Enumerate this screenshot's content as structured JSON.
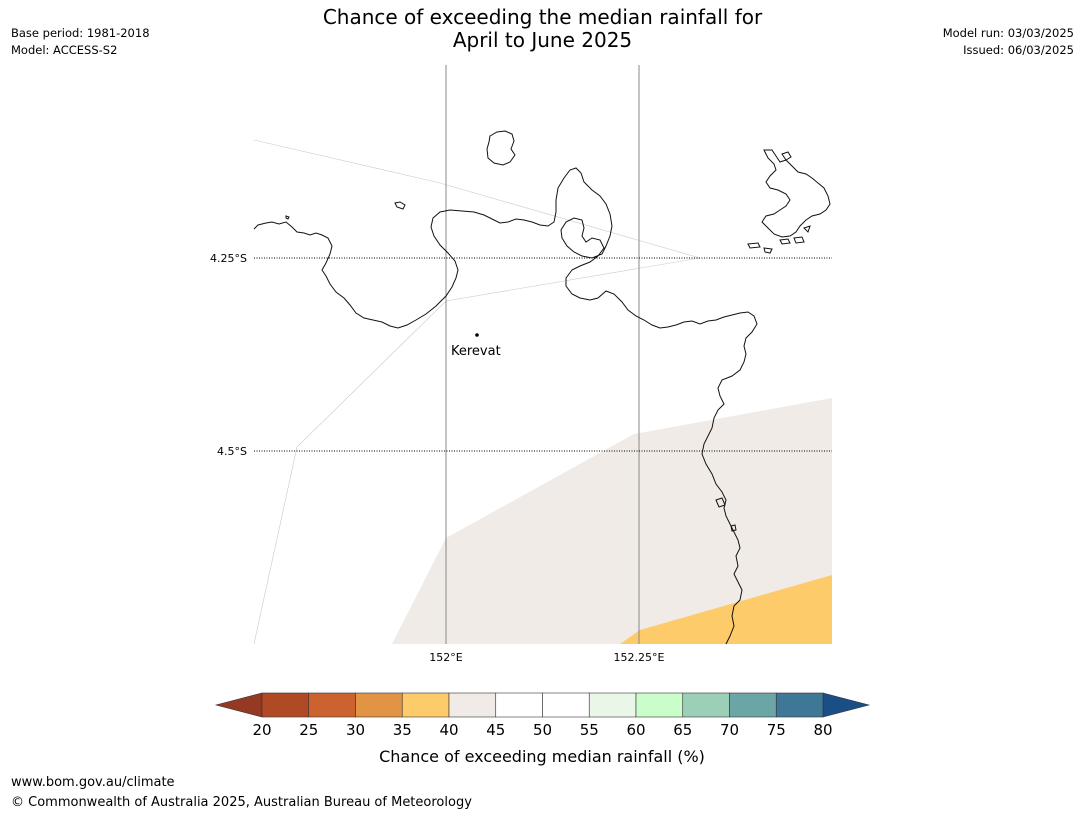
{
  "title": {
    "line1": "Chance of exceeding the median rainfall for",
    "line2": "April to June 2025"
  },
  "meta_left": {
    "base_period": "Base period: 1981-2018",
    "model": "Model: ACCESS-S2"
  },
  "meta_right": {
    "model_run": "Model run: 03/03/2025",
    "issued": "Issued: 06/03/2025"
  },
  "map": {
    "lat_labels": [
      "4.25°S",
      "4.5°S"
    ],
    "lon_labels": [
      "152°E",
      "152.25°E"
    ],
    "place": {
      "name": "Kerevat"
    },
    "shading_colors": {
      "40-45": "#f0ebe6",
      "35-40": "#fecb6a"
    }
  },
  "colorbar": {
    "ticks": [
      "20",
      "25",
      "30",
      "35",
      "40",
      "45",
      "50",
      "55",
      "60",
      "65",
      "70",
      "75",
      "80"
    ],
    "colors": [
      "#943a24",
      "#b04a25",
      "#cc6230",
      "#e29445",
      "#fecb6a",
      "#f0ebe6",
      "#ffffff",
      "#ffffff",
      "#eaf6e8",
      "#c9fdc9",
      "#9bcfb8",
      "#6ca5a6",
      "#3f7796",
      "#1a4f86"
    ],
    "label": "Chance of exceeding median rainfall (%)"
  },
  "footer": {
    "url": "www.bom.gov.au/climate",
    "copyright": "© Commonwealth of Australia 2025, Australian Bureau of Meteorology"
  }
}
